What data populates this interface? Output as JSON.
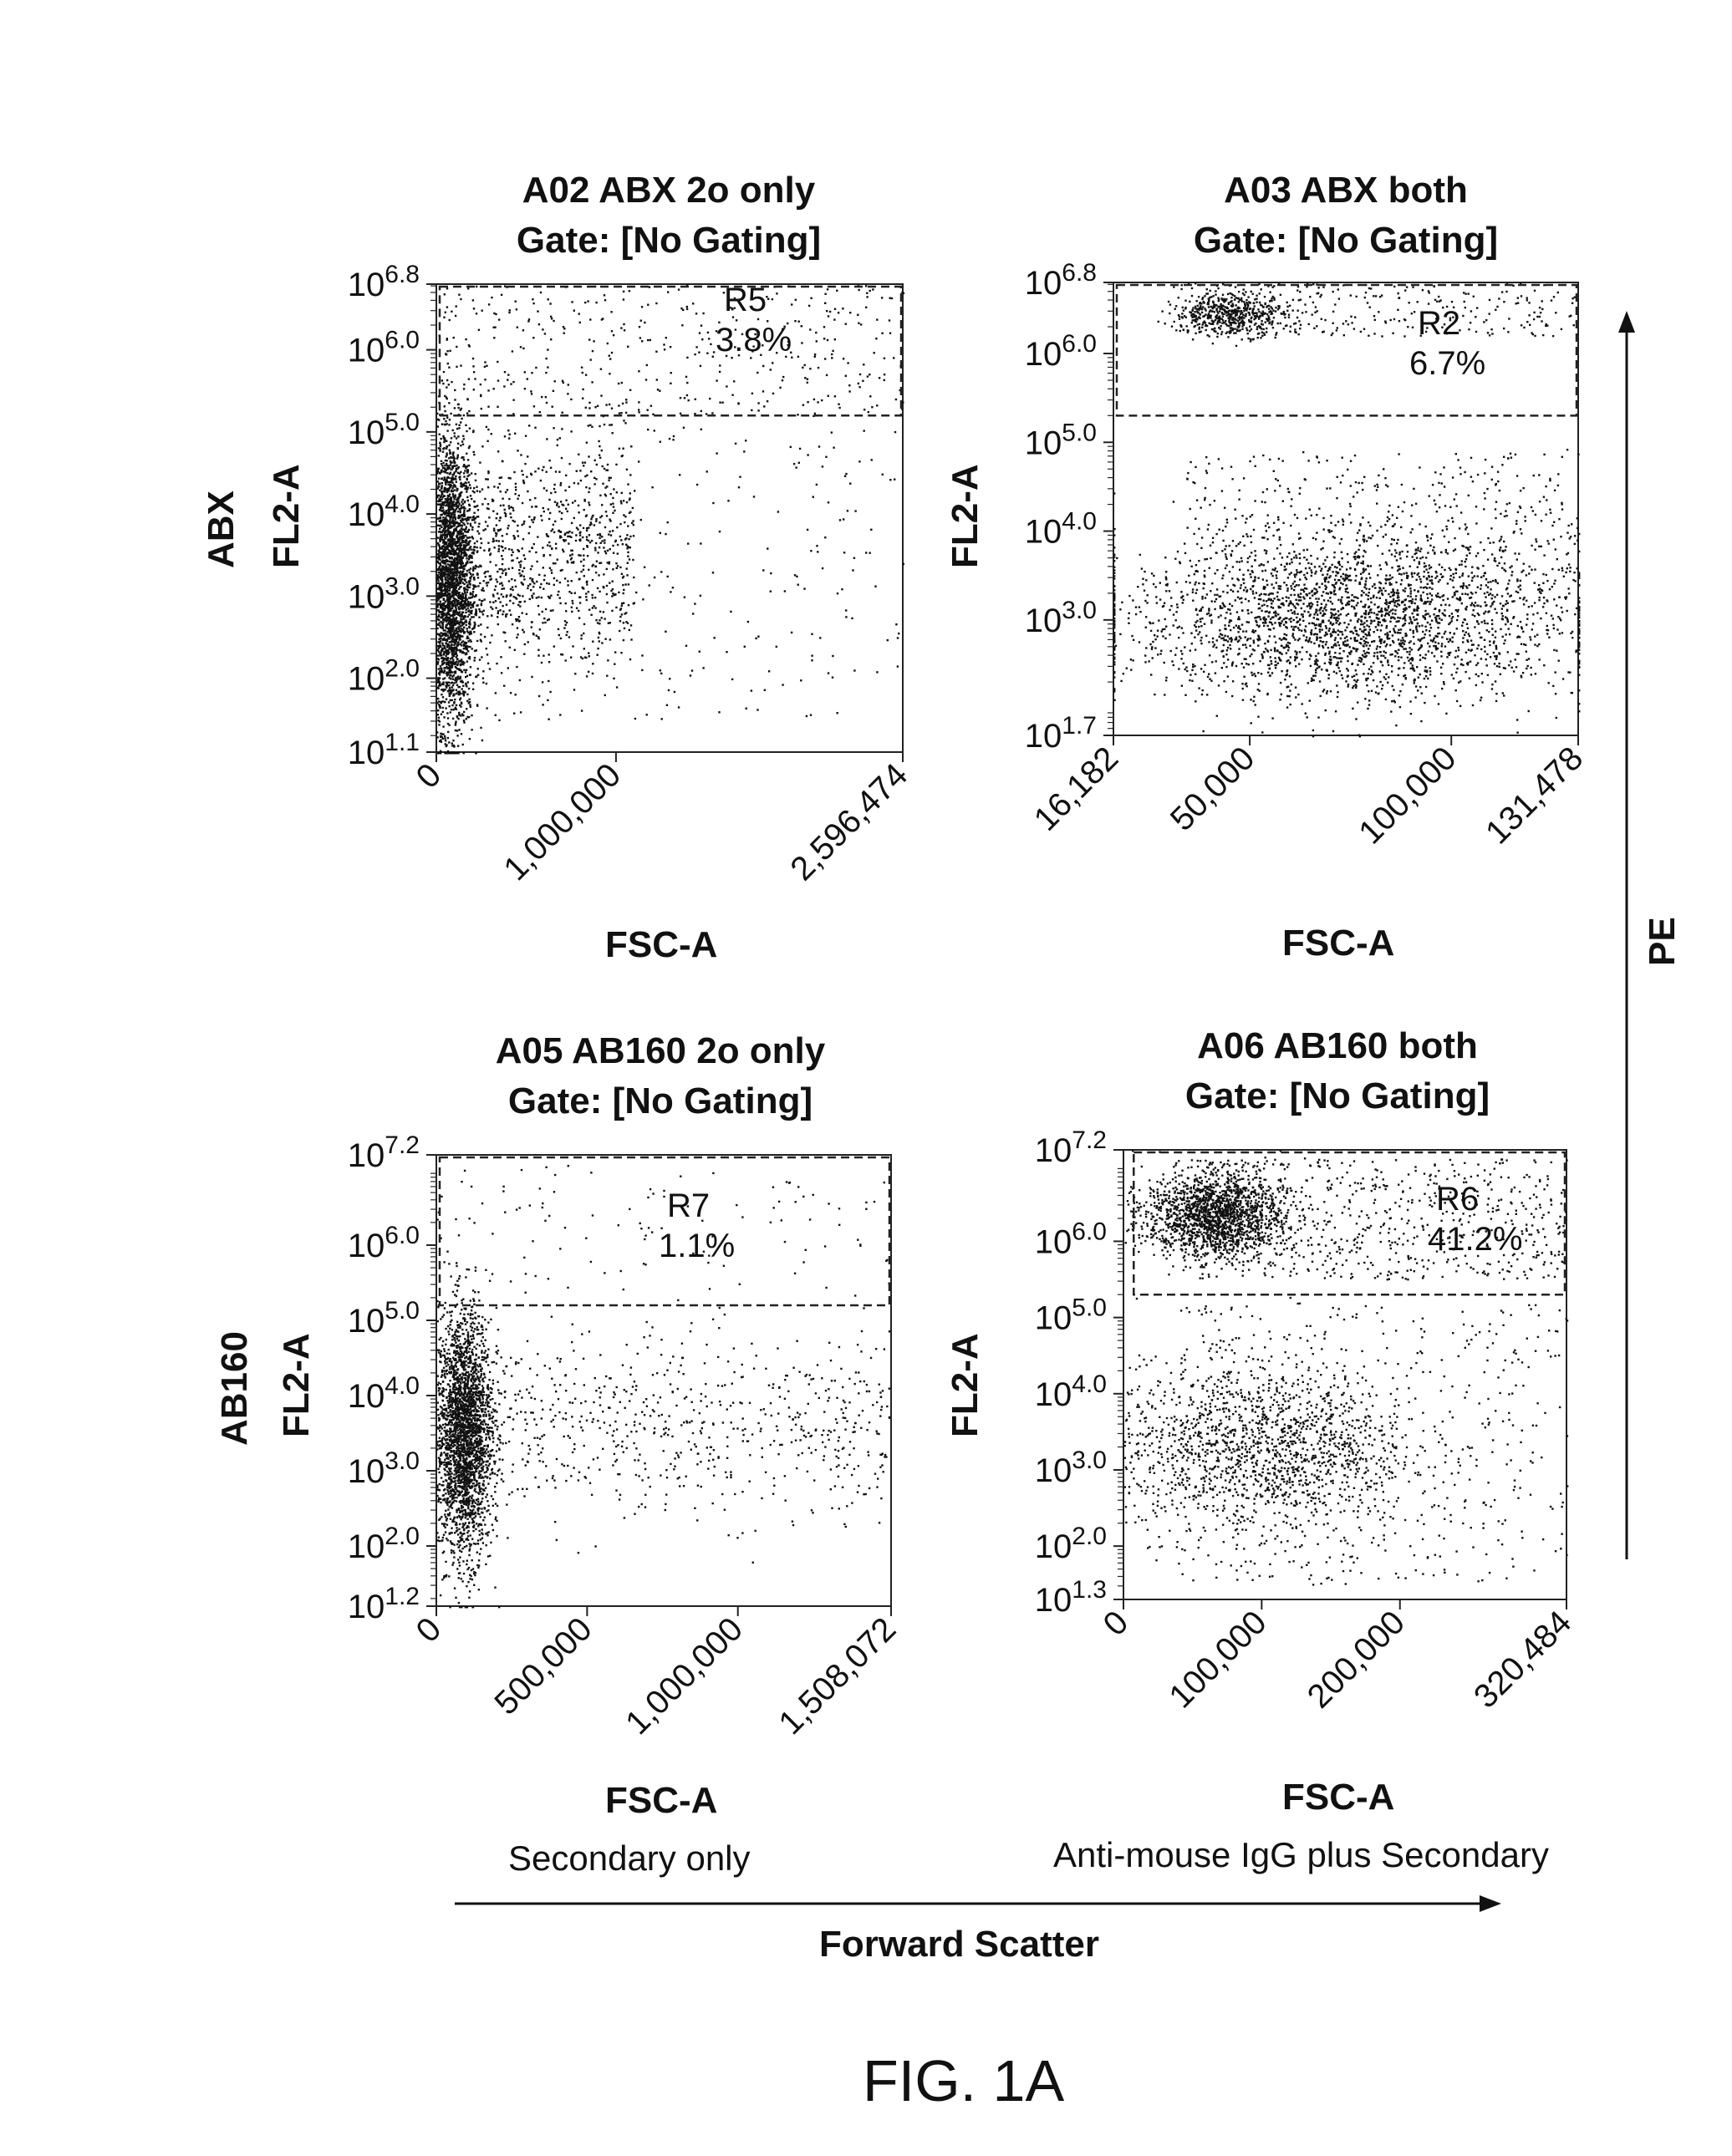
{
  "figure_label": "FIG. 1A",
  "side_axis_label": "PE",
  "bottom_axis_label": "Forward Scatter",
  "chart_data": [
    {
      "type": "scatter",
      "title": "A02 ABX 2o only",
      "subtitle": "Gate: [No Gating]",
      "xlabel": "FSC-A",
      "ylabel": "FL2-A",
      "row_label": "ABX",
      "xlim": [
        0,
        2596474
      ],
      "x_ticks": [
        0,
        1000000,
        2596474
      ],
      "x_tick_labels": [
        "0",
        "1,000,000",
        "2,596,474"
      ],
      "y_scale": "log",
      "ylim_log10": [
        1.1,
        6.8
      ],
      "y_tick_exponents": [
        "1.1",
        "2.0",
        "3.0",
        "4.0",
        "5.0",
        "6.0",
        "6.8"
      ],
      "gate": {
        "name": "R5",
        "percent": "3.8%",
        "x_range": [
          0,
          2596474
        ],
        "log10_y_range": [
          5.2,
          6.8
        ]
      },
      "populations": [
        {
          "name": "main",
          "n": 2600,
          "x_mean": 80000,
          "x_sd": 60000,
          "log10_y_mean": 3.2,
          "log10_y_sd": 0.9
        },
        {
          "name": "tail",
          "n": 900,
          "x_min": 150000,
          "x_max": 1100000,
          "log10_y_mean": 3.5,
          "log10_y_sd": 0.7
        },
        {
          "name": "high",
          "n": 420,
          "x_min": 0,
          "x_max": 2596474,
          "log10_y_min": 5.2,
          "log10_y_max": 6.8
        },
        {
          "name": "sparse",
          "n": 260,
          "x_min": 200000,
          "x_max": 2596474,
          "log10_y_min": 1.5,
          "log10_y_max": 5.1
        }
      ]
    },
    {
      "type": "scatter",
      "title": "A03 ABX both",
      "subtitle": "Gate: [No Gating]",
      "xlabel": "FSC-A",
      "ylabel": "FL2-A",
      "row_label": "",
      "xlim": [
        16182,
        131478
      ],
      "x_ticks": [
        16182,
        50000,
        100000,
        131478
      ],
      "x_tick_labels": [
        "16,182",
        "50,000",
        "100,000",
        "131,478"
      ],
      "y_scale": "log",
      "ylim_log10": [
        1.7,
        6.8
      ],
      "y_tick_exponents": [
        "1.7",
        "3.0",
        "4.0",
        "5.0",
        "6.0",
        "6.8"
      ],
      "gate": {
        "name": "R2",
        "percent": "6.7%",
        "x_range": [
          16182,
          131478
        ],
        "log10_y_range": [
          5.3,
          6.8
        ]
      },
      "populations": [
        {
          "name": "upper-cluster",
          "n": 520,
          "x_mean": 45000,
          "x_sd": 7000,
          "log10_y_mean": 6.45,
          "log10_y_sd": 0.12
        },
        {
          "name": "upper-spread",
          "n": 300,
          "x_min": 30000,
          "x_max": 131478,
          "log10_y_min": 6.2,
          "log10_y_max": 6.8
        },
        {
          "name": "lower",
          "n": 2600,
          "x_mean": 75000,
          "x_sd": 28000,
          "log10_y_mean": 3.0,
          "log10_y_sd": 0.45
        },
        {
          "name": "lower-mid",
          "n": 500,
          "x_min": 34000,
          "x_max": 131478,
          "log10_y_min": 3.2,
          "log10_y_max": 4.9
        }
      ]
    },
    {
      "type": "scatter",
      "title": "A05 AB160 2o only",
      "subtitle": "Gate: [No Gating]",
      "xlabel": "FSC-A",
      "ylabel": "FL2-A",
      "row_label": "AB160",
      "caption": "Secondary only",
      "xlim": [
        0,
        1508072
      ],
      "x_ticks": [
        0,
        500000,
        1000000,
        1508072
      ],
      "x_tick_labels": [
        "0",
        "500,000",
        "1,000,000",
        "1,508,072"
      ],
      "y_scale": "log",
      "ylim_log10": [
        1.2,
        7.2
      ],
      "y_tick_exponents": [
        "1.2",
        "2.0",
        "3.0",
        "4.0",
        "5.0",
        "6.0",
        "7.2"
      ],
      "gate": {
        "name": "R7",
        "percent": "1.1%",
        "x_range": [
          0,
          1508072
        ],
        "log10_y_range": [
          5.2,
          7.2
        ]
      },
      "populations": [
        {
          "name": "main",
          "n": 2600,
          "x_mean": 90000,
          "x_sd": 45000,
          "log10_y_mean": 3.5,
          "log10_y_sd": 0.8
        },
        {
          "name": "tail",
          "n": 700,
          "x_min": 150000,
          "x_max": 1500000,
          "log10_y_mean": 3.6,
          "log10_y_sd": 0.6
        },
        {
          "name": "high",
          "n": 110,
          "x_min": 0,
          "x_max": 1500000,
          "log10_y_min": 5.2,
          "log10_y_max": 7.1
        }
      ]
    },
    {
      "type": "scatter",
      "title": "A06 AB160 both",
      "subtitle": "Gate: [No Gating]",
      "xlabel": "FSC-A",
      "ylabel": "FL2-A",
      "row_label": "",
      "caption": "Anti-mouse IgG plus Secondary",
      "xlim": [
        0,
        320484
      ],
      "x_ticks": [
        0,
        100000,
        200000,
        320484
      ],
      "x_tick_labels": [
        "0",
        "100,000",
        "200,000",
        "320,484"
      ],
      "y_scale": "log",
      "ylim_log10": [
        1.3,
        7.2
      ],
      "y_tick_exponents": [
        "1.3",
        "2.0",
        "3.0",
        "4.0",
        "5.0",
        "6.0",
        "7.2"
      ],
      "gate": {
        "name": "R6",
        "percent": "41.2%",
        "x_range": [
          5000,
          320484
        ],
        "log10_y_range": [
          5.3,
          7.2
        ]
      },
      "populations": [
        {
          "name": "bright-cluster",
          "n": 1700,
          "x_mean": 65000,
          "x_sd": 25000,
          "log10_y_mean": 6.35,
          "log10_y_sd": 0.28
        },
        {
          "name": "bright-spread",
          "n": 700,
          "x_min": 50000,
          "x_max": 320484,
          "log10_y_min": 5.5,
          "log10_y_max": 7.1
        },
        {
          "name": "dim",
          "n": 1500,
          "x_mean": 100000,
          "x_sd": 55000,
          "log10_y_mean": 3.3,
          "log10_y_sd": 0.55
        },
        {
          "name": "dim-sparse",
          "n": 500,
          "x_min": 35000,
          "x_max": 320484,
          "log10_y_min": 1.5,
          "log10_y_max": 5.2
        }
      ]
    }
  ]
}
